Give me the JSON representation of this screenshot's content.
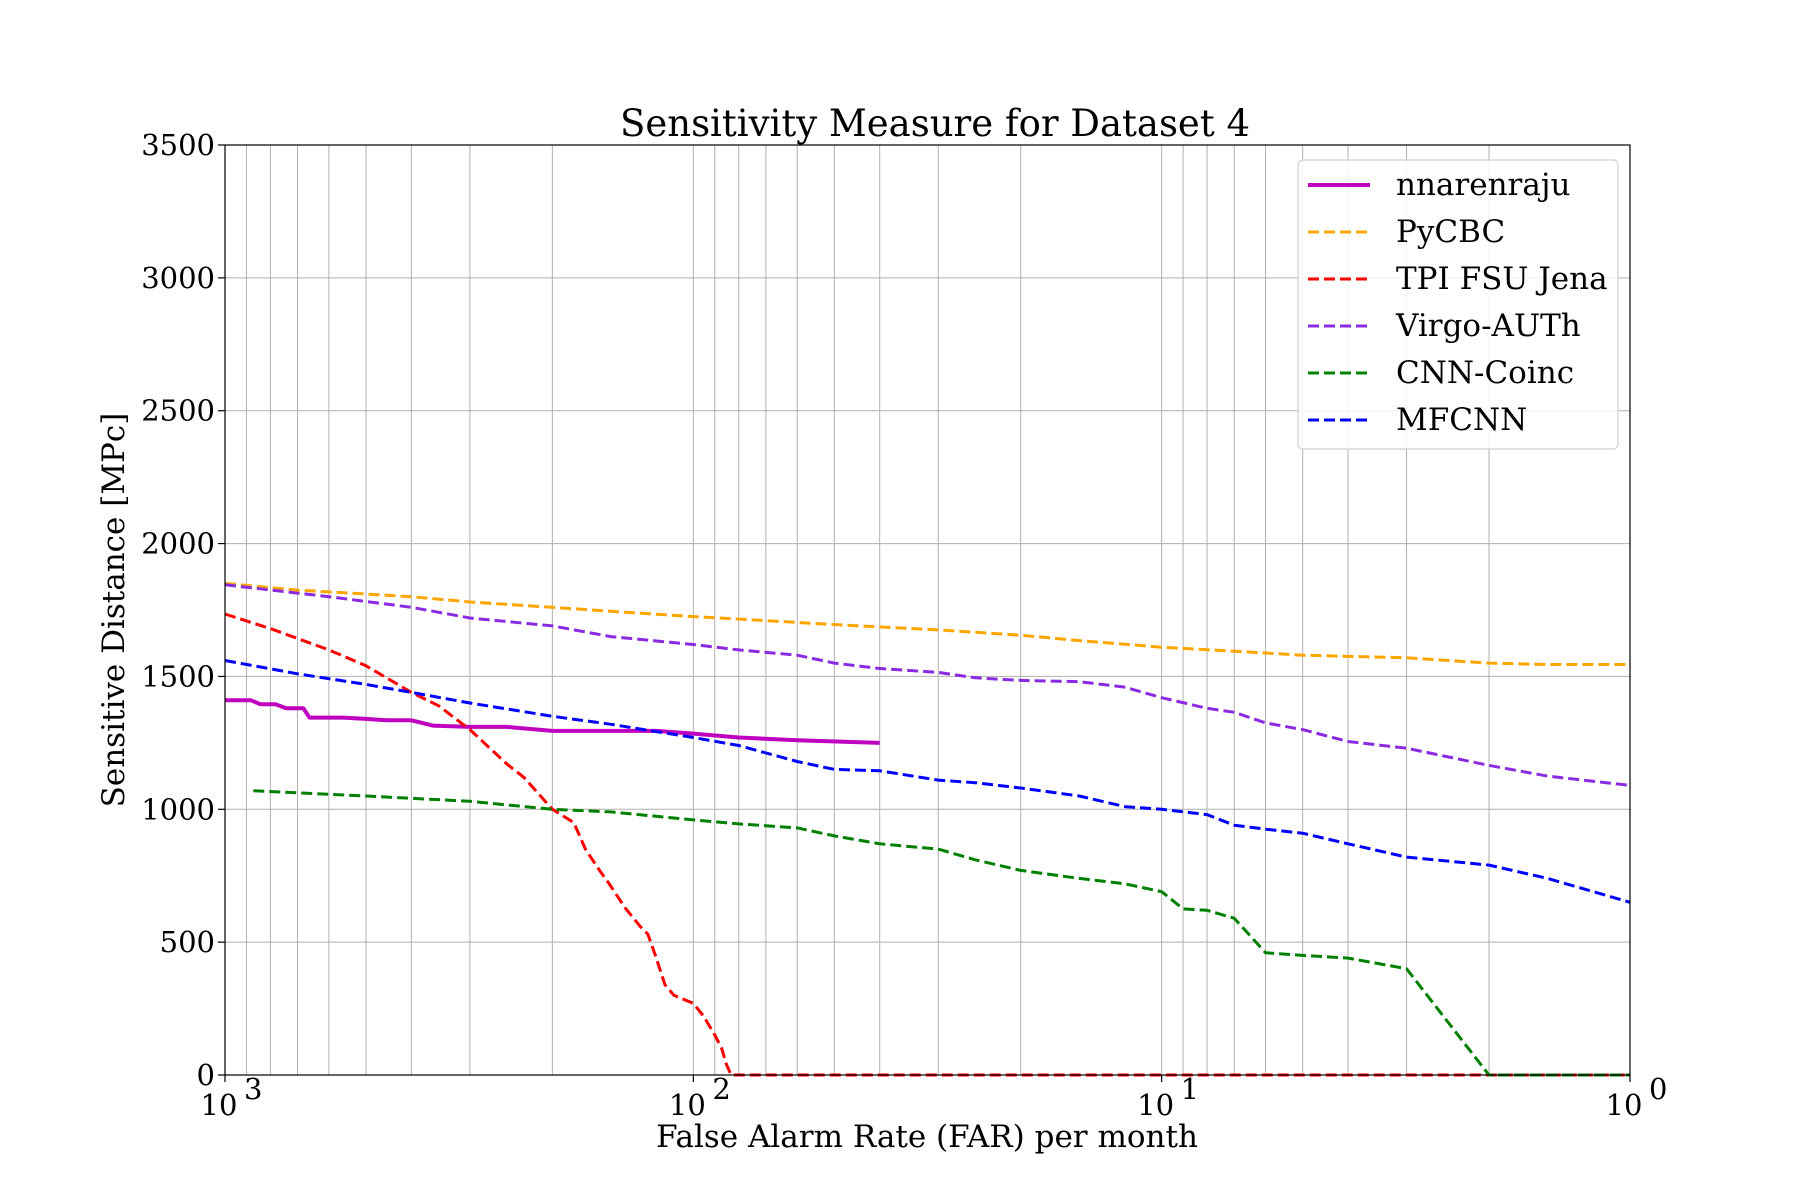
{
  "chart_data": {
    "type": "line",
    "title": "Sensitivity Measure for Dataset 4",
    "xlabel": "False Alarm Rate (FAR) per month",
    "ylabel": "Sensitive Distance [MPc]",
    "xscale": "log",
    "x_direction": "decreasing",
    "xlim": [
      1000,
      1
    ],
    "ylim": [
      0,
      3500
    ],
    "grid": true,
    "legend_position": "top-right",
    "x_ticks": [
      {
        "value": 1000,
        "label": "10",
        "exponent": "3"
      },
      {
        "value": 100,
        "label": "10",
        "exponent": "2"
      },
      {
        "value": 10,
        "label": "10",
        "exponent": "1"
      },
      {
        "value": 1,
        "label": "10",
        "exponent": "0"
      }
    ],
    "y_ticks": [
      0,
      500,
      1000,
      1500,
      2000,
      2500,
      3000,
      3500
    ],
    "series": [
      {
        "name": "nnarenraju",
        "color": "#bf00bf",
        "style": "solid",
        "x": [
          1000,
          880,
          840,
          780,
          740,
          680,
          660,
          600,
          560,
          500,
          450,
          400,
          360,
          300,
          250,
          200,
          160,
          120,
          100,
          80,
          60,
          40
        ],
        "y": [
          1410,
          1410,
          1395,
          1395,
          1380,
          1380,
          1345,
          1345,
          1345,
          1340,
          1335,
          1335,
          1315,
          1310,
          1310,
          1295,
          1295,
          1295,
          1285,
          1270,
          1260,
          1250
        ]
      },
      {
        "name": "PyCBC",
        "color": "#ffa500",
        "style": "dashed",
        "x": [
          1000,
          700,
          400,
          300,
          200,
          150,
          100,
          70,
          50,
          30,
          20,
          15,
          10,
          7,
          5,
          3,
          2,
          1.5,
          1
        ],
        "y": [
          1850,
          1825,
          1800,
          1780,
          1760,
          1745,
          1725,
          1710,
          1695,
          1675,
          1655,
          1635,
          1610,
          1595,
          1580,
          1570,
          1550,
          1545,
          1545
        ]
      },
      {
        "name": "TPI FSU Jena",
        "color": "#ff0000",
        "style": "dashed",
        "x": [
          1000,
          800,
          600,
          500,
          400,
          350,
          300,
          250,
          230,
          200,
          180,
          170,
          160,
          150,
          140,
          130,
          125,
          120,
          115,
          110,
          100,
          95,
          90,
          87,
          85,
          83,
          80,
          1
        ],
        "y": [
          1735,
          1680,
          1600,
          1540,
          1440,
          1390,
          1300,
          1170,
          1120,
          1000,
          950,
          850,
          780,
          710,
          630,
          560,
          530,
          440,
          340,
          300,
          270,
          220,
          150,
          100,
          40,
          0,
          0,
          0
        ]
      },
      {
        "name": "Virgo-AUTh",
        "color": "#8a2be2",
        "style": "dashed",
        "x": [
          1000,
          600,
          400,
          300,
          200,
          150,
          100,
          80,
          60,
          50,
          40,
          30,
          25,
          20,
          15,
          12,
          10,
          8,
          7,
          6,
          5,
          4,
          3,
          2,
          1.5,
          1
        ],
        "y": [
          1845,
          1800,
          1760,
          1720,
          1690,
          1650,
          1620,
          1600,
          1580,
          1550,
          1530,
          1515,
          1495,
          1485,
          1480,
          1460,
          1420,
          1380,
          1365,
          1325,
          1300,
          1255,
          1230,
          1165,
          1125,
          1090
        ]
      },
      {
        "name": "CNN-Coinc",
        "color": "#008000",
        "style": "dashed",
        "x": [
          870,
          500,
          300,
          200,
          150,
          100,
          80,
          60,
          50,
          40,
          30,
          25,
          20,
          15,
          12,
          10,
          9,
          8,
          7,
          6,
          5,
          4,
          3,
          2,
          1.5,
          1
        ],
        "y": [
          1070,
          1050,
          1030,
          1000,
          990,
          960,
          945,
          930,
          900,
          870,
          850,
          810,
          770,
          740,
          720,
          690,
          625,
          620,
          590,
          460,
          450,
          440,
          400,
          0,
          0,
          0
        ]
      },
      {
        "name": "MFCNN",
        "color": "#0000ff",
        "style": "dashed",
        "x": [
          1000,
          700,
          500,
          400,
          300,
          200,
          150,
          100,
          80,
          60,
          50,
          40,
          30,
          25,
          20,
          15,
          12,
          10,
          8,
          7,
          6,
          5,
          4,
          3,
          2,
          1.5,
          1
        ],
        "y": [
          1560,
          1510,
          1470,
          1440,
          1400,
          1350,
          1320,
          1270,
          1240,
          1180,
          1150,
          1145,
          1110,
          1100,
          1080,
          1050,
          1010,
          1000,
          980,
          940,
          925,
          910,
          870,
          820,
          790,
          740,
          650
        ]
      }
    ]
  }
}
